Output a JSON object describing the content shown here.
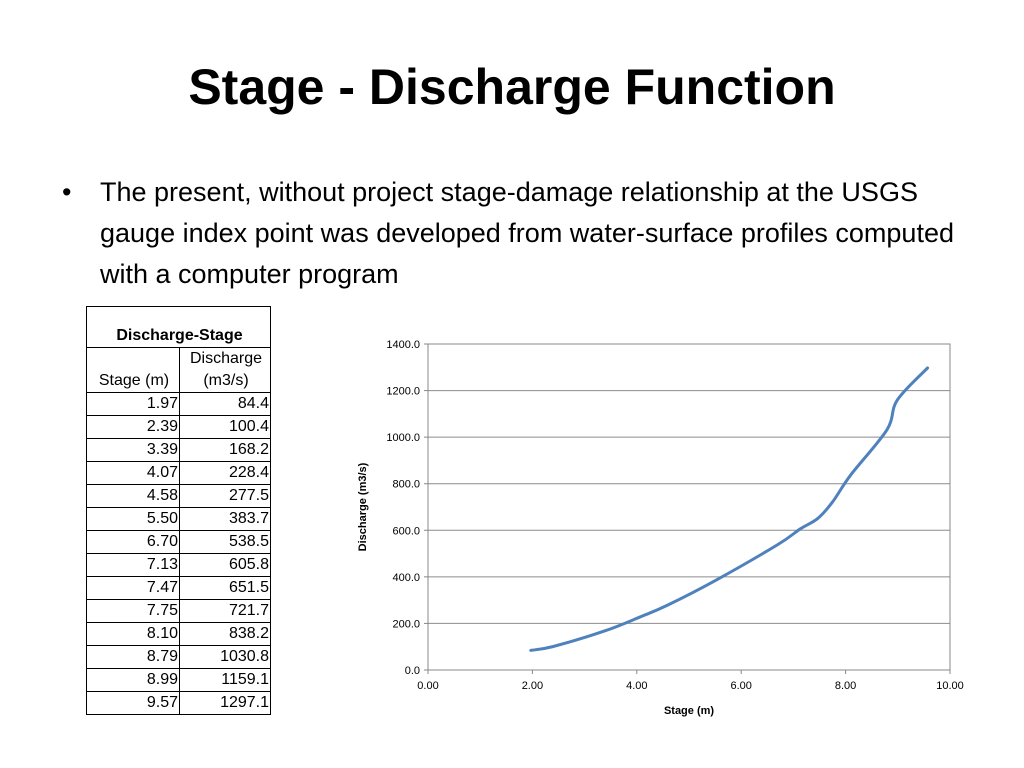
{
  "slide": {
    "title": "Stage - Discharge Function",
    "bullet": "The present, without project stage-damage relationship at the USGS gauge index point was developed from water-surface profiles computed with a computer program"
  },
  "table": {
    "title": "Discharge-Stage",
    "headers": [
      "Stage (m)",
      "Discharge (m3/s)"
    ],
    "rows": [
      [
        "1.97",
        "84.4"
      ],
      [
        "2.39",
        "100.4"
      ],
      [
        "3.39",
        "168.2"
      ],
      [
        "4.07",
        "228.4"
      ],
      [
        "4.58",
        "277.5"
      ],
      [
        "5.50",
        "383.7"
      ],
      [
        "6.70",
        "538.5"
      ],
      [
        "7.13",
        "605.8"
      ],
      [
        "7.47",
        "651.5"
      ],
      [
        "7.75",
        "721.7"
      ],
      [
        "8.10",
        "838.2"
      ],
      [
        "8.79",
        "1030.8"
      ],
      [
        "8.99",
        "1159.1"
      ],
      [
        "9.57",
        "1297.1"
      ]
    ]
  },
  "chart_data": {
    "type": "line",
    "title": "",
    "xlabel": "Stage (m)",
    "ylabel": "Discharge (m3/s)",
    "xlim": [
      0,
      10
    ],
    "ylim": [
      0,
      1400
    ],
    "xticks": [
      "0.00",
      "2.00",
      "4.00",
      "6.00",
      "8.00",
      "10.00"
    ],
    "yticks": [
      "0.0",
      "200.0",
      "400.0",
      "600.0",
      "800.0",
      "1000.0",
      "1200.0",
      "1400.0"
    ],
    "grid": "horizontal",
    "legend": "none",
    "line_color": "#4f81bd",
    "series": [
      {
        "x": [
          1.97,
          2.39,
          3.39,
          4.07,
          4.58,
          5.5,
          6.7,
          7.13,
          7.47,
          7.75,
          8.1,
          8.79,
          8.99,
          9.57
        ],
        "y": [
          84.4,
          100.4,
          168.2,
          228.4,
          277.5,
          383.7,
          538.5,
          605.8,
          651.5,
          721.7,
          838.2,
          1030.8,
          1159.1,
          1297.1
        ]
      }
    ]
  }
}
